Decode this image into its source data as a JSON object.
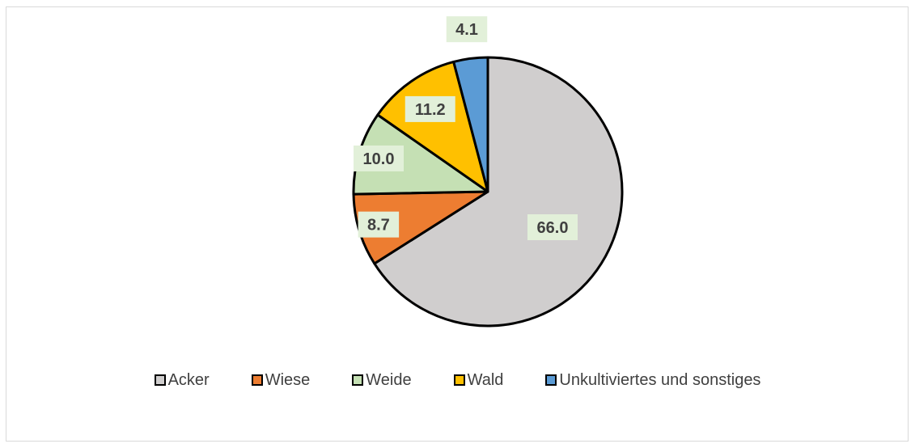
{
  "chart_data": {
    "type": "pie",
    "title": "",
    "categories": [
      "Acker",
      "Wiese",
      "Weide",
      "Wald",
      "Unkultiviertes und sonstiges"
    ],
    "values": [
      66.0,
      8.7,
      10.0,
      11.2,
      4.1
    ],
    "value_labels": [
      "66.0",
      "8.7",
      "10.0",
      "11.2",
      "4.1"
    ],
    "colors": [
      "#d0cece",
      "#ed7d31",
      "#c5e0b4",
      "#ffc000",
      "#5b9bd5"
    ],
    "label_background": "#e2f0d9",
    "slice_outline": "#000000",
    "legend_position": "bottom"
  }
}
